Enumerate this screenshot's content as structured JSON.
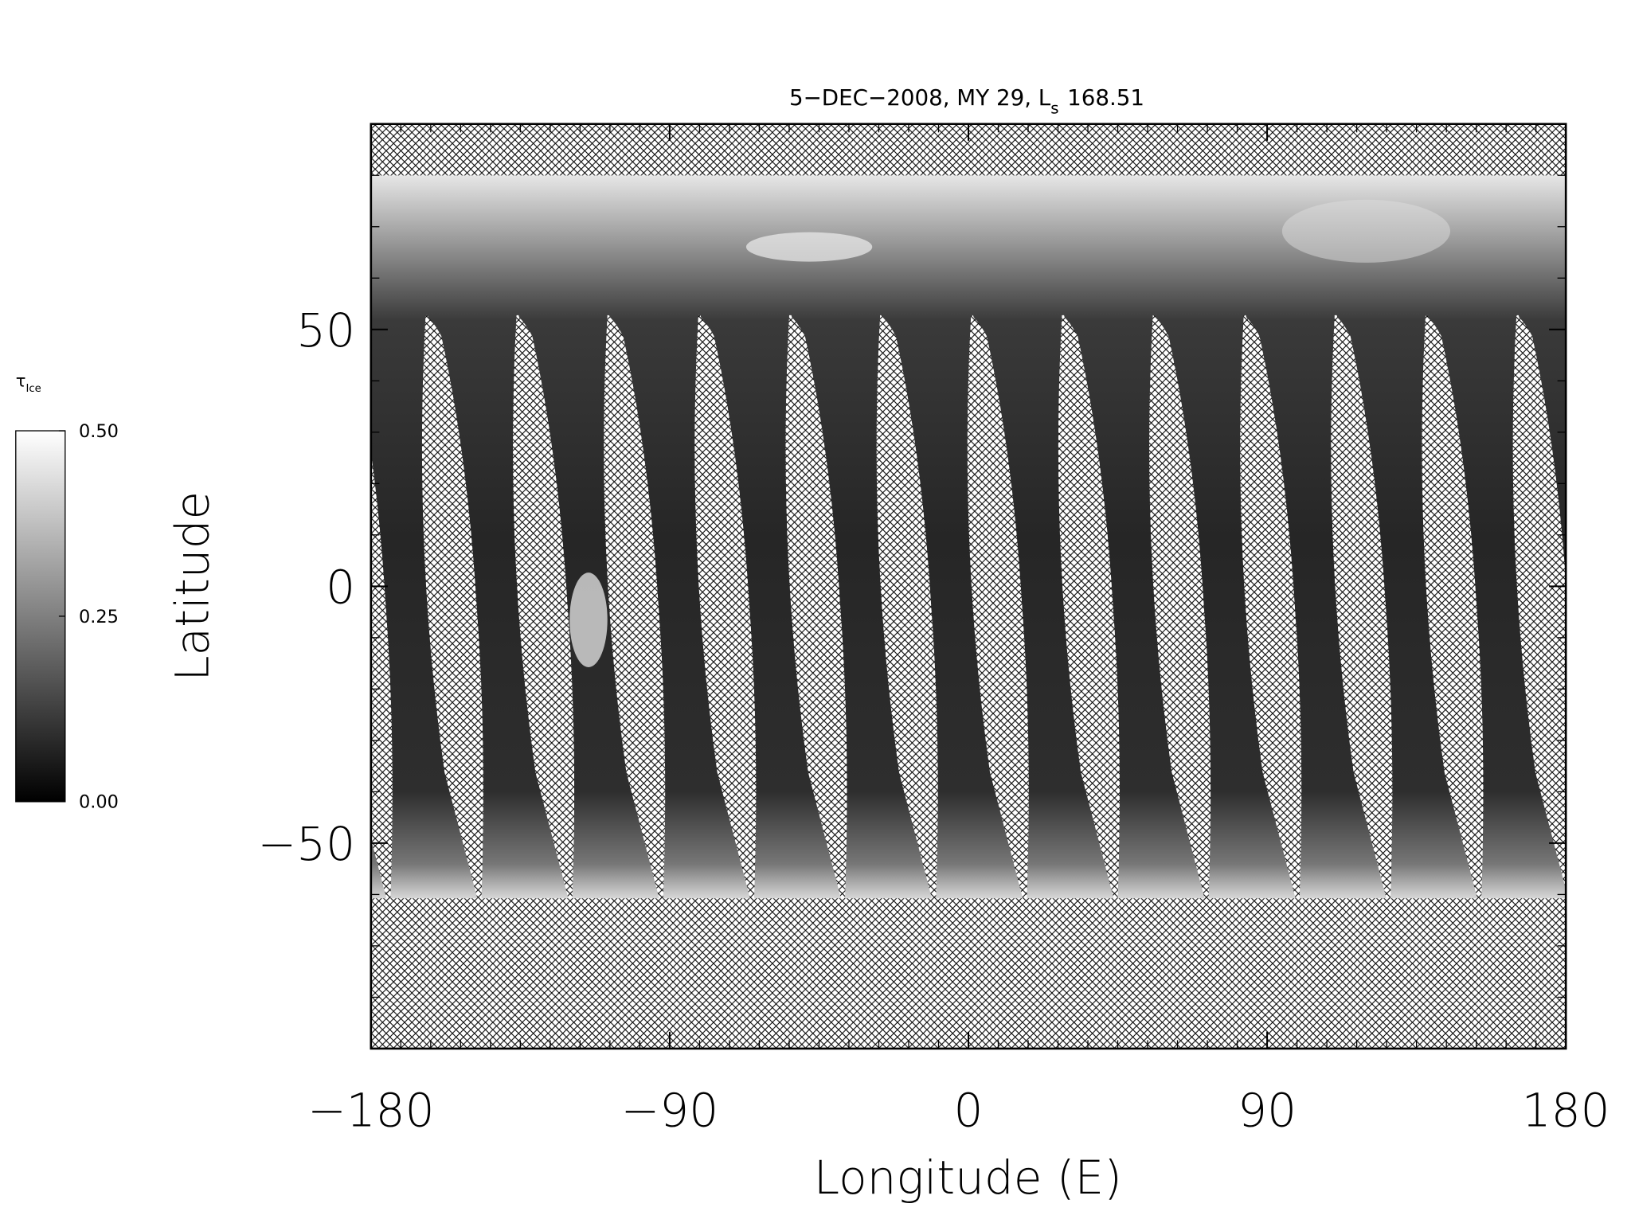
{
  "chart_data": {
    "type": "map",
    "title": "5−DEC−2008, MY 29,  L",
    "title_subscript": "s",
    "title_suffix": "168.51",
    "x_label": "Longitude (E)",
    "y_label": "Latitude",
    "xlim": [
      -180,
      180
    ],
    "xticks": [
      {
        "value": -180,
        "label": "−180"
      },
      {
        "value": -90,
        "label": "−90"
      },
      0,
      90,
      180
    ],
    "xminorticks": [
      -171,
      -162,
      -153,
      -144,
      -135,
      -126,
      -117,
      -108,
      -99,
      -81,
      -72,
      -63,
      -54,
      -45,
      -36,
      -27,
      -18,
      -9,
      9,
      18,
      27,
      36,
      45,
      54,
      63,
      72,
      81,
      99,
      108,
      117,
      126,
      135,
      144,
      153,
      162,
      171
    ],
    "ylim": [
      -90,
      90
    ],
    "yticks": [
      {
        "value": -50,
        "label": "−50"
      },
      0,
      50
    ],
    "yminorticks": [
      -80,
      -70,
      -60,
      -40,
      -30,
      -20,
      -10,
      10,
      20,
      30,
      40,
      60,
      70,
      80
    ],
    "colorbar": {
      "label": "τ",
      "label_subscript": "Ice",
      "range": [
        0,
        0.5
      ],
      "ticks": [
        {
          "value": 0,
          "label": "0.00"
        },
        {
          "value": 0.25,
          "label": "0.25"
        },
        {
          "value": 0.5,
          "label": "0.50"
        }
      ],
      "colors": [
        "#000000",
        "#ffffff"
      ]
    }
  }
}
